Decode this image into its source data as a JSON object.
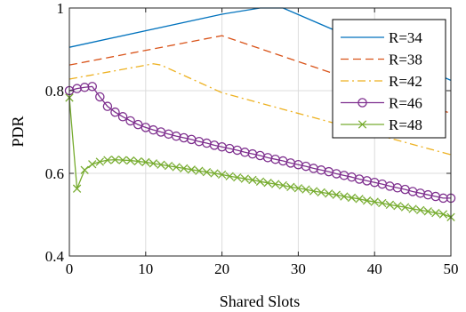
{
  "chart_data": {
    "type": "line",
    "title": "",
    "xlabel": "Shared Slots",
    "ylabel": "PDR",
    "xlim": [
      0,
      50
    ],
    "ylim": [
      0.4,
      1.0
    ],
    "xticks": [
      0,
      10,
      20,
      30,
      40,
      50
    ],
    "yticks": [
      0.4,
      0.6,
      0.8,
      1.0
    ],
    "xtick_labels": [
      "0",
      "10",
      "20",
      "30",
      "40",
      "50"
    ],
    "ytick_labels": [
      "0.4",
      "0.6",
      "0.8",
      "1"
    ],
    "grid": true,
    "legend_position": "top-right",
    "series": [
      {
        "name": "R=34",
        "color": "#0072BD",
        "dash": "solid",
        "marker": "none",
        "x": [
          0,
          20,
          25,
          28,
          50
        ],
        "y": [
          0.905,
          0.985,
          1.0,
          1.0,
          0.825
        ]
      },
      {
        "name": "R=38",
        "color": "#D95319",
        "dash": "dashed",
        "marker": "none",
        "x": [
          0,
          20,
          50
        ],
        "y": [
          0.862,
          0.933,
          0.745
        ]
      },
      {
        "name": "R=42",
        "color": "#EDB120",
        "dash": "dashdot",
        "marker": "none",
        "x": [
          0,
          11,
          12,
          20,
          50
        ],
        "y": [
          0.828,
          0.865,
          0.862,
          0.795,
          0.645
        ]
      },
      {
        "name": "R=46",
        "color": "#7E2F8E",
        "dash": "solid",
        "marker": "circle",
        "x": [
          0,
          1,
          2,
          3,
          4,
          5,
          6,
          7,
          8,
          9,
          10,
          11,
          12,
          13,
          14,
          15,
          16,
          17,
          18,
          19,
          20,
          21,
          22,
          23,
          24,
          25,
          26,
          27,
          28,
          29,
          30,
          31,
          32,
          33,
          34,
          35,
          36,
          37,
          38,
          39,
          40,
          41,
          42,
          43,
          44,
          45,
          46,
          47,
          48,
          49,
          50
        ],
        "y": [
          0.8,
          0.805,
          0.808,
          0.81,
          0.785,
          0.762,
          0.748,
          0.737,
          0.727,
          0.718,
          0.711,
          0.705,
          0.7,
          0.695,
          0.69,
          0.686,
          0.682,
          0.677,
          0.673,
          0.668,
          0.664,
          0.66,
          0.656,
          0.651,
          0.647,
          0.643,
          0.638,
          0.634,
          0.63,
          0.625,
          0.621,
          0.617,
          0.612,
          0.608,
          0.604,
          0.599,
          0.595,
          0.591,
          0.586,
          0.582,
          0.578,
          0.574,
          0.569,
          0.565,
          0.561,
          0.556,
          0.552,
          0.548,
          0.544,
          0.54,
          0.54
        ]
      },
      {
        "name": "R=48",
        "color": "#77AC30",
        "dash": "solid",
        "marker": "x",
        "x": [
          0,
          1,
          2,
          3,
          4,
          5,
          6,
          7,
          8,
          9,
          10,
          11,
          12,
          13,
          14,
          15,
          16,
          17,
          18,
          19,
          20,
          21,
          22,
          23,
          24,
          25,
          26,
          27,
          28,
          29,
          30,
          31,
          32,
          33,
          34,
          35,
          36,
          37,
          38,
          39,
          40,
          41,
          42,
          43,
          44,
          45,
          46,
          47,
          48,
          49,
          50
        ],
        "y": [
          0.783,
          0.563,
          0.608,
          0.622,
          0.628,
          0.632,
          0.633,
          0.632,
          0.631,
          0.629,
          0.627,
          0.624,
          0.621,
          0.618,
          0.615,
          0.612,
          0.609,
          0.606,
          0.603,
          0.6,
          0.597,
          0.593,
          0.59,
          0.587,
          0.584,
          0.58,
          0.577,
          0.574,
          0.571,
          0.567,
          0.564,
          0.561,
          0.557,
          0.554,
          0.551,
          0.548,
          0.544,
          0.541,
          0.538,
          0.534,
          0.531,
          0.528,
          0.524,
          0.521,
          0.518,
          0.514,
          0.511,
          0.508,
          0.504,
          0.501,
          0.494
        ]
      }
    ]
  }
}
